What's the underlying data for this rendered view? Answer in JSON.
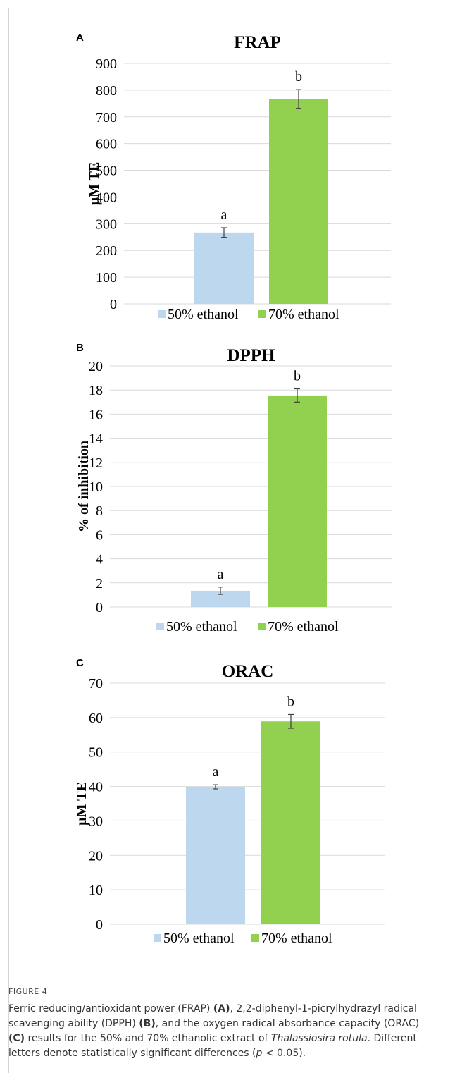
{
  "chart_data": [
    {
      "type": "bar",
      "panel": "A",
      "title": "FRAP",
      "ylabel": "µM TE",
      "xlabel": "",
      "categories": [
        "50% ethanol",
        "70% ethanol"
      ],
      "values": [
        267,
        767
      ],
      "errors": [
        18,
        35
      ],
      "sig_labels": [
        "a",
        "b"
      ],
      "colors": [
        "#bdd7ee",
        "#92d050"
      ],
      "ylim": [
        0,
        900
      ],
      "yticks": [
        "0",
        "100",
        "200",
        "300",
        "400",
        "500",
        "600",
        "700",
        "800",
        "900"
      ],
      "grid": true,
      "legend": "bottom"
    },
    {
      "type": "bar",
      "panel": "B",
      "title": "DPPH",
      "ylabel": "% of inhibition",
      "xlabel": "",
      "categories": [
        "50% ethanol",
        "70% ethanol"
      ],
      "values": [
        1.35,
        17.55
      ],
      "errors": [
        0.3,
        0.55
      ],
      "sig_labels": [
        "a",
        "b"
      ],
      "colors": [
        "#bdd7ee",
        "#92d050"
      ],
      "ylim": [
        0,
        20
      ],
      "yticks": [
        "0",
        "2",
        "4",
        "6",
        "8",
        "10",
        "12",
        "14",
        "16",
        "18",
        "20"
      ],
      "grid": true,
      "legend": "bottom"
    },
    {
      "type": "bar",
      "panel": "C",
      "title": "ORAC",
      "ylabel": "µM TE",
      "xlabel": "",
      "categories": [
        "50% ethanol",
        "70% ethanol"
      ],
      "values": [
        39.9,
        58.9
      ],
      "errors": [
        0.6,
        2.0
      ],
      "sig_labels": [
        "a",
        "b"
      ],
      "colors": [
        "#bdd7ee",
        "#92d050"
      ],
      "ylim": [
        0,
        70
      ],
      "yticks": [
        "0",
        "10",
        "20",
        "30",
        "40",
        "50",
        "60",
        "70"
      ],
      "grid": true,
      "legend": "bottom"
    }
  ],
  "caption": {
    "label": "FIGURE 4",
    "segments": [
      {
        "text": "Ferric reducing/antioxidant power (FRAP) ",
        "style": "normal"
      },
      {
        "text": "(A)",
        "style": "bold"
      },
      {
        "text": ", 2,2-diphenyl-1-picrylhydrazyl radical scavenging ability (DPPH) ",
        "style": "normal"
      },
      {
        "text": "(B)",
        "style": "bold"
      },
      {
        "text": ", and the oxygen radical absorbance capacity (ORAC) ",
        "style": "normal"
      },
      {
        "text": "(C)",
        "style": "bold"
      },
      {
        "text": " results for the 50% and 70% ethanolic extract of ",
        "style": "normal"
      },
      {
        "text": "Thalassiosira rotula",
        "style": "italic"
      },
      {
        "text": ". Different letters denote statistically significant differences (",
        "style": "normal"
      },
      {
        "text": "p",
        "style": "italic"
      },
      {
        "text": " < 0.05).",
        "style": "normal"
      }
    ]
  }
}
